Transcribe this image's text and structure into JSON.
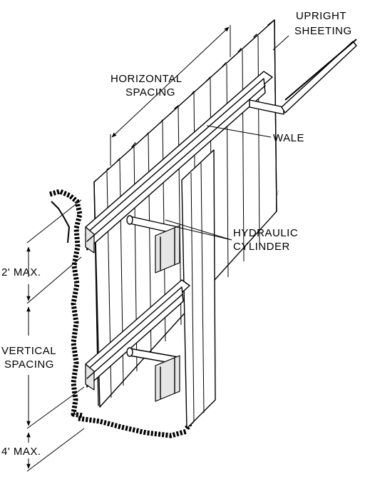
{
  "labels": {
    "upright_sheeting_1": "UPRIGHT",
    "upright_sheeting_2": "SHEETING",
    "horizontal_spacing_1": "HORIZONTAL",
    "horizontal_spacing_2": "SPACING",
    "wale": "WALE",
    "hydraulic_cylinder_1": "HYDRAULIC",
    "hydraulic_cylinder_2": "CYLINDER",
    "top_max": "2' MAX.",
    "vertical_spacing_1": "VERTICAL",
    "vertical_spacing_2": "SPACING",
    "bottom_max": "4' MAX."
  }
}
